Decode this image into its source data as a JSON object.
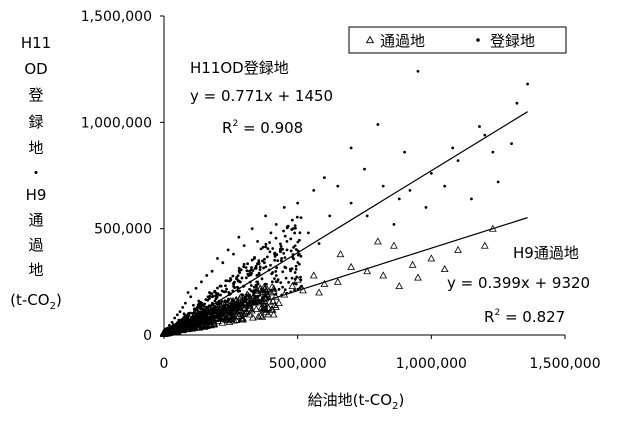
{
  "chart_data": {
    "type": "scatter",
    "x_range": [
      0,
      1500000
    ],
    "y_range": [
      0,
      1500000
    ],
    "x_ticks": [
      "0",
      "500,000",
      "1,000,000",
      "1,500,000"
    ],
    "x_tick_values": [
      0,
      500000,
      1000000,
      1500000
    ],
    "y_ticks": [
      "0",
      "500,000",
      "1,000,000",
      "1,500,000"
    ],
    "y_tick_values": [
      0,
      500000,
      1000000,
      1500000
    ],
    "x_label": {
      "main": "給油地(t-CO",
      "sub": "2",
      "end": ")"
    },
    "y_label": {
      "lines": [
        "H11",
        "OD",
        "登",
        "録",
        "地",
        "・",
        "H9",
        "通",
        "過",
        "地"
      ],
      "unit_main": "(t-CO",
      "unit_sub": "2",
      "unit_end": ")"
    },
    "grid": false,
    "legend_position": "top-right",
    "legend": [
      {
        "name": "通過地",
        "marker": "triangle"
      },
      {
        "name": "登録地",
        "marker": "dot"
      }
    ],
    "series": [
      {
        "name": "登録地",
        "marker": "dot",
        "trendline": {
          "slope": 0.771,
          "intercept": 1450,
          "x_end": 1360000,
          "label": "H11OD登録地",
          "equation": "y = 0.771x + 1450",
          "r2_prefix": "R",
          "r2_sup": "2",
          "r2_value": " = 0.908"
        },
        "points": [
          [
            950000,
            1240000
          ],
          [
            1360000,
            1180000
          ],
          [
            1320000,
            1090000
          ],
          [
            1200000,
            940000
          ],
          [
            1100000,
            820000
          ],
          [
            1000000,
            760000
          ],
          [
            1150000,
            640000
          ],
          [
            900000,
            860000
          ],
          [
            1050000,
            700000
          ],
          [
            800000,
            990000
          ],
          [
            750000,
            780000
          ],
          [
            700000,
            880000
          ],
          [
            650000,
            700000
          ],
          [
            600000,
            740000
          ],
          [
            560000,
            680000
          ],
          [
            880000,
            640000
          ],
          [
            980000,
            600000
          ],
          [
            1250000,
            720000
          ],
          [
            1300000,
            900000
          ],
          [
            620000,
            560000
          ],
          [
            500000,
            620000
          ],
          [
            480000,
            540000
          ],
          [
            450000,
            600000
          ],
          [
            420000,
            520000
          ],
          [
            400000,
            480000
          ],
          [
            380000,
            560000
          ],
          [
            350000,
            440000
          ],
          [
            330000,
            500000
          ],
          [
            300000,
            420000
          ],
          [
            280000,
            460000
          ],
          [
            260000,
            380000
          ],
          [
            240000,
            400000
          ],
          [
            220000,
            340000
          ],
          [
            200000,
            360000
          ],
          [
            180000,
            300000
          ],
          [
            160000,
            280000
          ],
          [
            140000,
            250000
          ],
          [
            120000,
            220000
          ],
          [
            100000,
            180000
          ],
          [
            90000,
            200000
          ],
          [
            80000,
            150000
          ],
          [
            70000,
            130000
          ],
          [
            60000,
            110000
          ],
          [
            50000,
            95000
          ],
          [
            40000,
            80000
          ],
          [
            30000,
            60000
          ],
          [
            20000,
            45000
          ],
          [
            10000,
            25000
          ],
          [
            700000,
            620000
          ],
          [
            760000,
            560000
          ],
          [
            820000,
            700000
          ],
          [
            860000,
            520000
          ],
          [
            540000,
            480000
          ],
          [
            580000,
            430000
          ],
          [
            460000,
            400000
          ],
          [
            440000,
            360000
          ],
          [
            360000,
            320000
          ],
          [
            320000,
            300000
          ],
          [
            250000,
            260000
          ],
          [
            210000,
            230000
          ],
          [
            170000,
            200000
          ],
          [
            130000,
            160000
          ],
          [
            110000,
            140000
          ],
          [
            75000,
            100000
          ],
          [
            55000,
            70000
          ],
          [
            35000,
            50000
          ],
          [
            25000,
            30000
          ],
          [
            15000,
            20000
          ],
          [
            920000,
            680000
          ],
          [
            1080000,
            880000
          ],
          [
            1180000,
            980000
          ],
          [
            1230000,
            860000
          ]
        ]
      },
      {
        "name": "通過地",
        "marker": "triangle",
        "trendline": {
          "slope": 0.399,
          "intercept": 9320,
          "x_end": 1360000,
          "label": "H9通過地",
          "equation": "y = 0.399x + 9320",
          "r2_prefix": "R",
          "r2_sup": "2",
          "r2_value": " = 0.827"
        },
        "points": [
          [
            1230000,
            500000
          ],
          [
            1200000,
            420000
          ],
          [
            1100000,
            400000
          ],
          [
            1000000,
            360000
          ],
          [
            930000,
            330000
          ],
          [
            860000,
            420000
          ],
          [
            820000,
            280000
          ],
          [
            760000,
            300000
          ],
          [
            700000,
            320000
          ],
          [
            650000,
            250000
          ],
          [
            600000,
            240000
          ],
          [
            560000,
            280000
          ],
          [
            520000,
            210000
          ],
          [
            480000,
            230000
          ],
          [
            450000,
            190000
          ],
          [
            400000,
            200000
          ],
          [
            370000,
            170000
          ],
          [
            340000,
            160000
          ],
          [
            300000,
            150000
          ],
          [
            270000,
            130000
          ],
          [
            240000,
            120000
          ],
          [
            210000,
            100000
          ],
          [
            180000,
            90000
          ],
          [
            150000,
            75000
          ],
          [
            120000,
            60000
          ],
          [
            100000,
            50000
          ],
          [
            80000,
            42000
          ],
          [
            60000,
            32000
          ],
          [
            45000,
            25000
          ],
          [
            30000,
            18000
          ],
          [
            20000,
            12000
          ],
          [
            10000,
            7000
          ],
          [
            800000,
            440000
          ],
          [
            880000,
            230000
          ],
          [
            950000,
            270000
          ],
          [
            1050000,
            310000
          ],
          [
            660000,
            380000
          ],
          [
            580000,
            200000
          ],
          [
            500000,
            260000
          ],
          [
            430000,
            150000
          ],
          [
            360000,
            220000
          ],
          [
            310000,
            180000
          ],
          [
            250000,
            160000
          ],
          [
            200000,
            140000
          ],
          [
            160000,
            110000
          ],
          [
            130000,
            80000
          ],
          [
            90000,
            60000
          ],
          [
            70000,
            50000
          ]
        ]
      }
    ]
  }
}
